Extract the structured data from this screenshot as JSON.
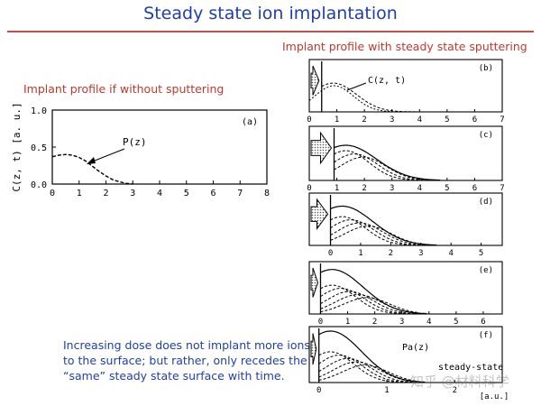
{
  "title": "Steady state ion implantation",
  "left_caption": "Implant profile if without sputtering",
  "right_caption": "Implant profile with steady state sputtering",
  "note_lines": [
    "Increasing dose does not implant more ions",
    "to the surface; but rather, only recedes the",
    "“same” steady state surface with time."
  ],
  "watermark": "知乎 @材料科学",
  "chart_data": [
    {
      "type": "line",
      "panel": "(a)",
      "ylabel": "C(z, t)  [a. u.]",
      "x_ticks": [
        "0",
        "1",
        "2",
        "3",
        "4",
        "5",
        "6",
        "7",
        "8"
      ],
      "y_ticks": [
        "0.0",
        "0.5",
        "1.0"
      ],
      "xlim": [
        0,
        8
      ],
      "ylim": [
        0,
        1.0
      ],
      "annotation": "P(z)",
      "series": [
        {
          "x": [
            0,
            0.25,
            0.5,
            0.75,
            1.0,
            1.25,
            1.5,
            1.75,
            2.0,
            2.25,
            2.5,
            2.75,
            3.0
          ],
          "y": [
            0.37,
            0.39,
            0.4,
            0.39,
            0.36,
            0.31,
            0.24,
            0.17,
            0.11,
            0.06,
            0.03,
            0.01,
            0.0
          ]
        }
      ]
    },
    {
      "type": "line",
      "panel": "(b)",
      "annotation": "C(z, t)",
      "x_ticks": [
        "0",
        "1",
        "2",
        "3",
        "4",
        "5",
        "6",
        "7"
      ],
      "xlim": [
        0,
        7
      ],
      "surface": 0.45
    },
    {
      "type": "line",
      "panel": "(c)",
      "x_ticks": [
        "0",
        "1",
        "2",
        "3",
        "4",
        "5",
        "6",
        "7"
      ],
      "xlim": [
        0,
        7
      ],
      "surface": 0.9
    },
    {
      "type": "line",
      "panel": "(d)",
      "x_ticks": [
        "0",
        "1",
        "2",
        "3",
        "4",
        "5"
      ],
      "xlim": [
        0,
        5
      ],
      "surface": 0.55
    },
    {
      "type": "line",
      "panel": "(e)",
      "x_ticks": [
        "0",
        "1",
        "2",
        "3",
        "4",
        "5",
        "6"
      ],
      "xlim": [
        0,
        6
      ],
      "surface": 0.35
    },
    {
      "type": "line",
      "panel": "(f)",
      "annotation": "Pa(z)",
      "annotation2": "steady-state",
      "x_ticks": [
        "0",
        "1",
        "2"
      ],
      "x_unit": "[a.u.]",
      "xlim": [
        0,
        7
      ],
      "surface": 0.35
    }
  ]
}
